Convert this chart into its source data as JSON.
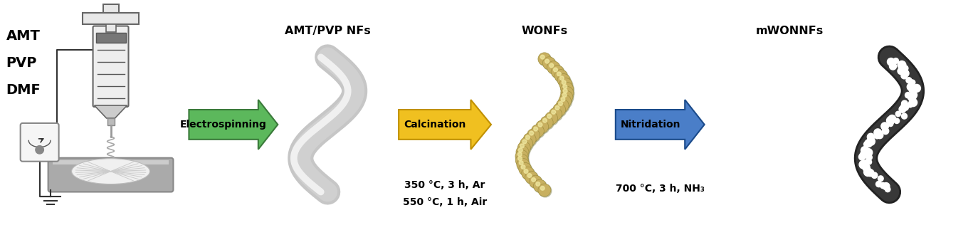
{
  "bg_color": "#ffffff",
  "fig_width": 13.67,
  "fig_height": 3.16,
  "dpi": 100,
  "labels": {
    "reactants": [
      "AMT",
      "PVP",
      "DMF"
    ],
    "step1_product": "AMT/PVP NFs",
    "step2_product": "WONFs",
    "step3_product": "mWONNFs",
    "arrow1_text": "Electrospinning",
    "arrow2_text": "Calcination",
    "arrow3_text": "Nitridation",
    "calc_conditions": [
      "350 °C, 3 h, Ar",
      "550 °C, 1 h, Air"
    ],
    "nitrid_conditions": "700 °C, 3 h, NH₃"
  },
  "colors": {
    "arrow1_fill": "#5cb85c",
    "arrow1_dark": "#3a7a3a",
    "arrow2_fill": "#f0c020",
    "arrow2_dark": "#c09000",
    "arrow3_fill": "#4a7ec8",
    "arrow3_dark": "#1a4a8a",
    "label_text": "#000000",
    "syringe_body": "#e8e8e8",
    "syringe_edge": "#666666",
    "syringe_dark": "#555555",
    "collector_gray": "#aaaaaa",
    "collector_dark": "#888888",
    "wire_color": "#333333"
  }
}
